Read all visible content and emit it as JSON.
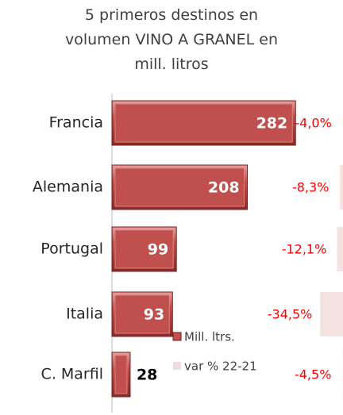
{
  "chart_data": {
    "type": "bar",
    "orientation": "horizontal",
    "title": "5 primeros destinos en volumen VINO A GRANEL en mill. litros",
    "categories": [
      "Francia",
      "Alemania",
      "Portugal",
      "Italia",
      "C. Marfil"
    ],
    "series": [
      {
        "name": "Mill. ltrs.",
        "color": "#c0504d",
        "values": [
          282,
          208,
          99,
          93,
          28
        ]
      },
      {
        "name": "var % 22-21",
        "color": "#f2dcdb",
        "axis": "y2",
        "values": [
          -4.0,
          -8.3,
          -12.1,
          -34.5,
          -4.5
        ],
        "value_labels": [
          "-4,0%",
          "-8,3%",
          "-12,1%",
          "-34,5%",
          "-4,5%"
        ]
      }
    ]
  }
}
